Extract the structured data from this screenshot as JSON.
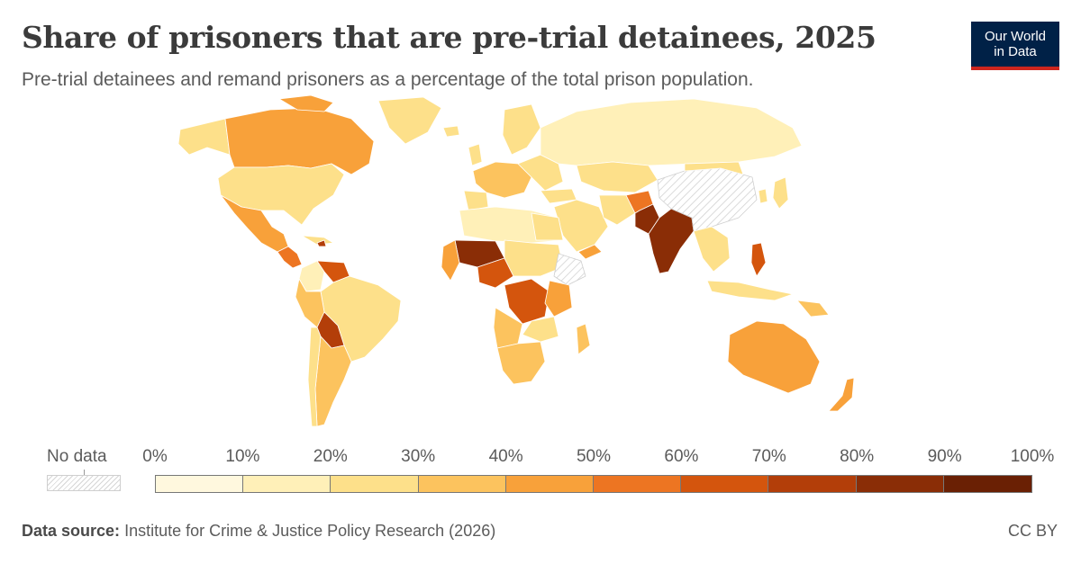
{
  "header": {
    "title": "Share of prisoners that are pre-trial detainees, 2025",
    "subtitle": "Pre-trial detainees and remand prisoners as a percentage of the total prison population."
  },
  "logo": {
    "line1": "Our World",
    "line2": "in Data",
    "bg_color": "#002147",
    "accent_color": "#ce261e"
  },
  "legend": {
    "no_data_label": "No data",
    "ticks": [
      "0%",
      "10%",
      "20%",
      "30%",
      "40%",
      "50%",
      "60%",
      "70%",
      "80%",
      "90%",
      "100%"
    ],
    "colors": [
      "#fff8de",
      "#fff0b8",
      "#fde08a",
      "#fcc35e",
      "#f8a13a",
      "#ed7522",
      "#d4550d",
      "#b33e09",
      "#8a2d06",
      "#6a2004"
    ]
  },
  "regions": [
    {
      "name": "Canada",
      "value": 45
    },
    {
      "name": "United States",
      "value": 22
    },
    {
      "name": "Mexico",
      "value": 45
    },
    {
      "name": "Brazil",
      "value": 27
    },
    {
      "name": "Bolivia",
      "value": 65
    },
    {
      "name": "Argentina",
      "value": 45
    },
    {
      "name": "Greenland",
      "value": 25
    },
    {
      "name": "Russia",
      "value": 18
    },
    {
      "name": "China",
      "value": null
    },
    {
      "name": "India",
      "value": 75
    },
    {
      "name": "Pakistan",
      "value": 75
    },
    {
      "name": "Australia",
      "value": 38
    },
    {
      "name": "DR Congo",
      "value": 70
    },
    {
      "name": "Philippines",
      "value": 68
    },
    {
      "name": "Mali",
      "value": 80
    },
    {
      "name": "Nigeria",
      "value": 68
    },
    {
      "name": "Algeria",
      "value": 10
    },
    {
      "name": "Egypt",
      "value": 30
    }
  ],
  "footer": {
    "source_label": "Data source:",
    "source_text": "Institute for Crime & Justice Policy Research (2026)",
    "license": "CC BY"
  }
}
